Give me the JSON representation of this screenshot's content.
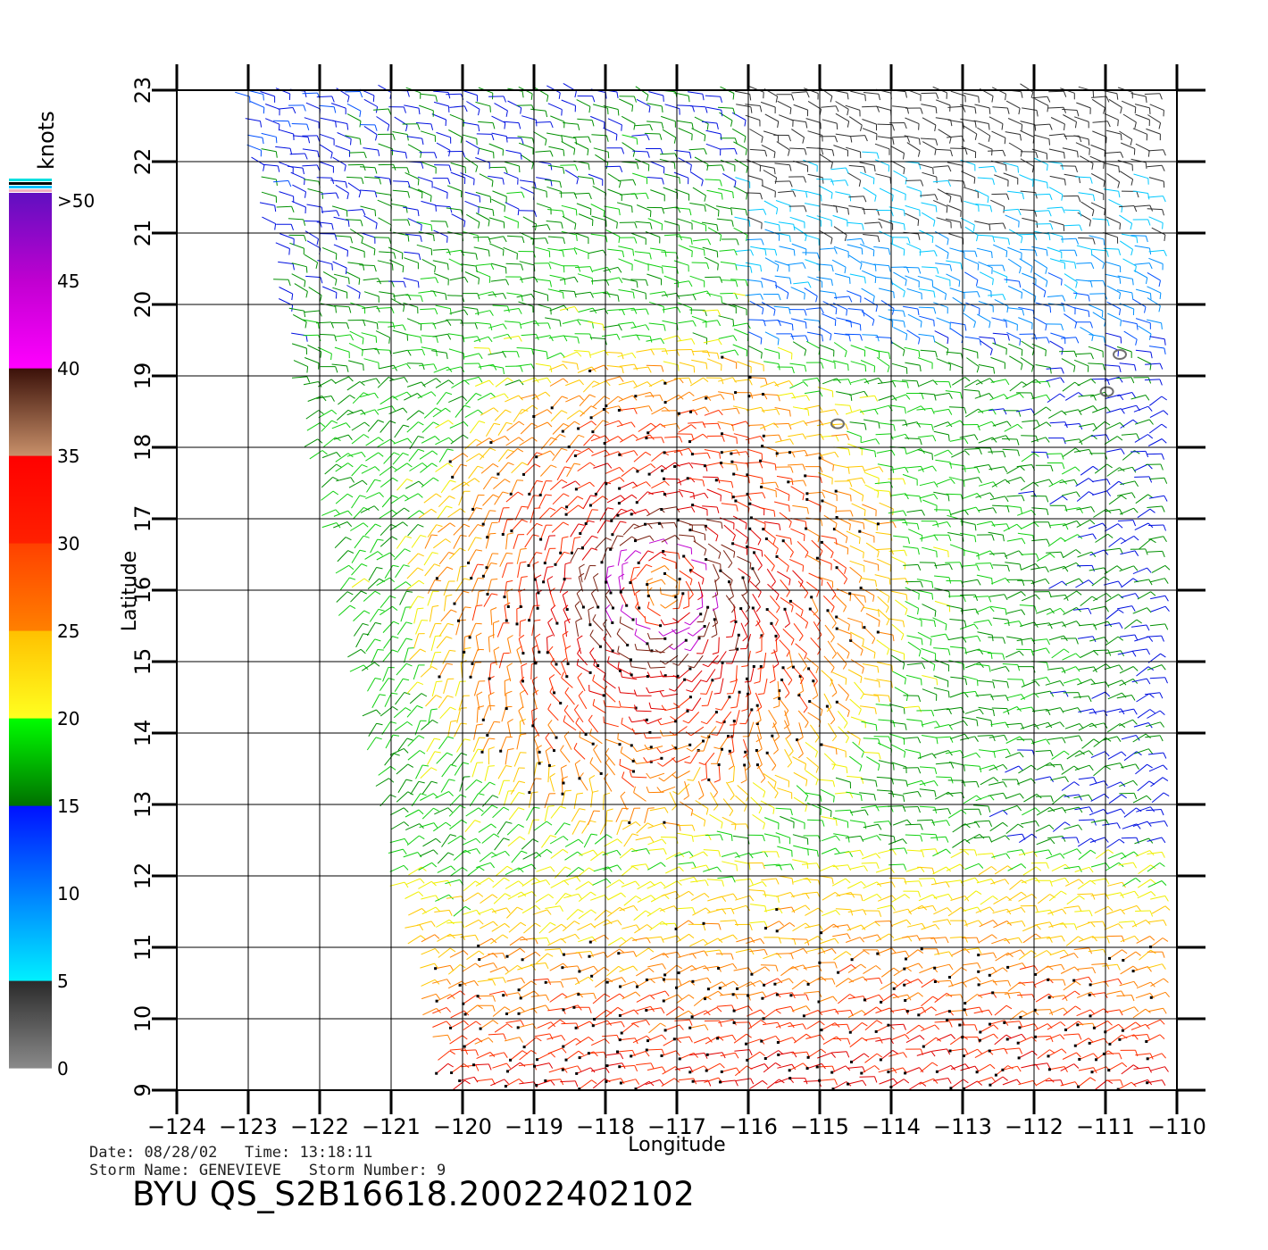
{
  "chart_data": {
    "type": "wind-vector-map",
    "xlabel": "Longitude",
    "ylabel": "Latitude",
    "xlim": [
      -124,
      -110
    ],
    "ylim": [
      9,
      23
    ],
    "x_ticks": [
      "-124",
      "-123",
      "-122",
      "-121",
      "-120",
      "-119",
      "-118",
      "-117",
      "-116",
      "-115",
      "-114",
      "-113",
      "-112",
      "-111",
      "-110"
    ],
    "y_ticks": [
      "9",
      "10",
      "11",
      "12",
      "13",
      "14",
      "15",
      "16",
      "17",
      "18",
      "19",
      "20",
      "21",
      "22",
      "23"
    ],
    "grid": true,
    "colorbar": {
      "unit": "knots",
      "ticks": [
        "0",
        "5",
        "10",
        "15",
        "20",
        "25",
        "30",
        "35",
        "40",
        "45",
        ">50"
      ],
      "bands": [
        {
          "from": 0,
          "to": 5,
          "colors": [
            "#8a8a8a",
            "#2a2a2a"
          ]
        },
        {
          "from": 5,
          "to": 10,
          "colors": [
            "#00f0ff",
            "#0080ff"
          ]
        },
        {
          "from": 10,
          "to": 15,
          "colors": [
            "#0080ff",
            "#0010ff"
          ]
        },
        {
          "from": 15,
          "to": 20,
          "colors": [
            "#007000",
            "#00ff00"
          ]
        },
        {
          "from": 20,
          "to": 25,
          "colors": [
            "#ffff20",
            "#ffc000"
          ]
        },
        {
          "from": 25,
          "to": 30,
          "colors": [
            "#ff8000",
            "#ff4000"
          ]
        },
        {
          "from": 30,
          "to": 35,
          "colors": [
            "#ff2000",
            "#ff0000"
          ]
        },
        {
          "from": 35,
          "to": 40,
          "colors": [
            "#c8906a",
            "#3a1008"
          ]
        },
        {
          "from": 40,
          "to": 45,
          "colors": [
            "#ff00ff",
            "#c000d0"
          ]
        },
        {
          "from": 45,
          "to": 50,
          "colors": [
            "#c000d0",
            "#6010c0"
          ]
        }
      ]
    },
    "storm_center": {
      "lon": -117.2,
      "lat": 16.0
    },
    "islands": [
      {
        "lon": -114.75,
        "lat": 18.33
      },
      {
        "lon": -110.98,
        "lat": 18.78
      },
      {
        "lon": -110.8,
        "lat": 19.3
      }
    ]
  },
  "caption": {
    "date_label": "Date:",
    "date": "08/28/02",
    "time_label": "Time:",
    "time": "13:18:11",
    "storm_name_label": "Storm Name:",
    "storm_name": "GENEVIEVE",
    "storm_number_label": "Storm Number:",
    "storm_number": "9",
    "file_title": "BYU QS_S2B16618.20022402102"
  },
  "colors": {
    "frame": "#000000",
    "grid": "#000000",
    "background": "#ffffff"
  }
}
